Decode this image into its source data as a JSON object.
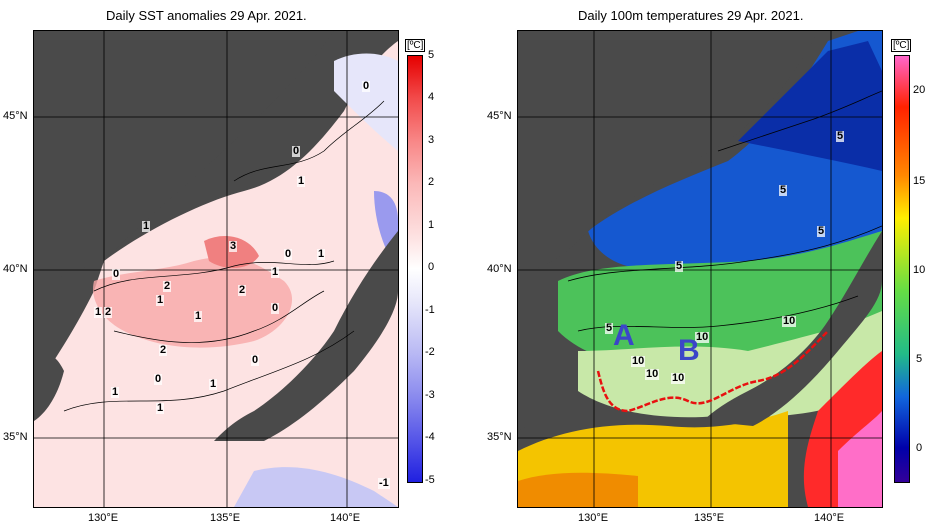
{
  "left_panel": {
    "title": "Daily SST anomalies 29 Apr. 2021.",
    "unit": "[ºC]",
    "colorbar_ticks": [
      "5",
      "4",
      "3",
      "2",
      "1",
      "0",
      "-1",
      "-2",
      "-3",
      "-4",
      "-5"
    ],
    "colors": [
      "#e60000",
      "#f24b4b",
      "#f88787",
      "#fbb8b8",
      "#fde0e0",
      "#ffffff",
      "#e6e6fa",
      "#b8b8f4",
      "#8a8aee",
      "#5656e8",
      "#2020e0"
    ],
    "contour_labels": [
      "0",
      "0",
      "1",
      "1",
      "3",
      "0",
      "1",
      "1",
      "0",
      "2",
      "2",
      "1",
      "1",
      "2",
      "1",
      "0",
      "2",
      "0",
      "0",
      "1",
      "1",
      "1",
      "-1"
    ]
  },
  "right_panel": {
    "title": "Daily 100m temperatures 29 Apr. 2021.",
    "unit": "[ºC]",
    "colorbar_ticks": [
      "20",
      "15",
      "10",
      "5",
      "0"
    ],
    "colors": [
      "#ff66cc",
      "#ff2200",
      "#ff8800",
      "#ffee00",
      "#66dd44",
      "#22bb88",
      "#1166dd",
      "#0000aa",
      "#330099"
    ],
    "contour_labels": [
      "5",
      "5",
      "5",
      "5",
      "10",
      "5",
      "10",
      "10",
      "10",
      "10"
    ],
    "region_labels": [
      "A",
      "B"
    ]
  },
  "axes": {
    "lat_labels": [
      "45°N",
      "40°N",
      "35°N"
    ],
    "lon_labels": [
      "130°E",
      "135°E",
      "140°E"
    ]
  }
}
